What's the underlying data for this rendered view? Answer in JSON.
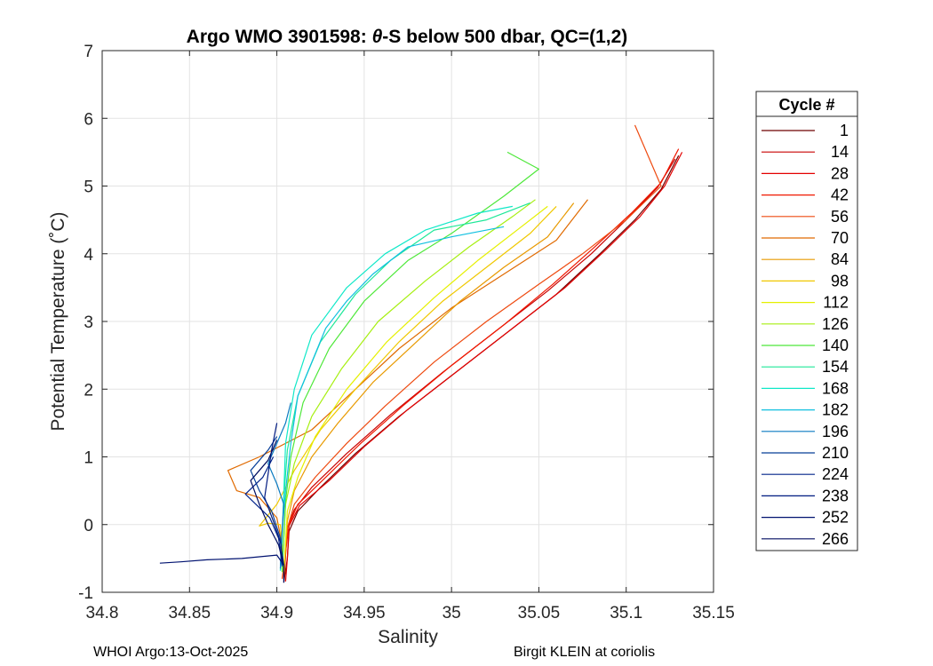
{
  "chart_data": {
    "type": "line",
    "title_prefix": "Argo WMO 3901598: ",
    "title_theta": "θ",
    "title_suffix": "-S below 500 dbar,  QC=(1,2)",
    "xlabel": "Salinity",
    "ylabel": "Potential Temperature (˚C)",
    "xlim": [
      34.8,
      35.15
    ],
    "ylim": [
      -1,
      7
    ],
    "grid": true,
    "xticks": [
      34.8,
      34.85,
      34.9,
      34.95,
      35,
      35.05,
      35.1,
      35.15
    ],
    "xtick_labels": [
      "34.8",
      "34.85",
      "34.9",
      "34.95",
      "35",
      "35.05",
      "35.1",
      "35.15"
    ],
    "yticks": [
      -1,
      0,
      1,
      2,
      3,
      4,
      5,
      6,
      7
    ],
    "ytick_labels": [
      "-1",
      "0",
      "1",
      "2",
      "3",
      "4",
      "5",
      "6",
      "7"
    ],
    "legend": {
      "title": "Cycle #",
      "placement": "outside-right",
      "entries": [
        {
          "label": "1",
          "color": "#6e0000"
        },
        {
          "label": "14",
          "color": "#c80000"
        },
        {
          "label": "28",
          "color": "#e30000"
        },
        {
          "label": "42",
          "color": "#f01800"
        },
        {
          "label": "56",
          "color": "#ee4a10"
        },
        {
          "label": "70",
          "color": "#e06a00"
        },
        {
          "label": "84",
          "color": "#e89a00"
        },
        {
          "label": "98",
          "color": "#f0c800"
        },
        {
          "label": "112",
          "color": "#e5f000"
        },
        {
          "label": "126",
          "color": "#a6ef10"
        },
        {
          "label": "140",
          "color": "#4ee83a"
        },
        {
          "label": "154",
          "color": "#1ee898"
        },
        {
          "label": "168",
          "color": "#10e8c8"
        },
        {
          "label": "182",
          "color": "#10c0e0"
        },
        {
          "label": "196",
          "color": "#0a7ac0"
        },
        {
          "label": "210",
          "color": "#063e98"
        },
        {
          "label": "224",
          "color": "#02238a"
        },
        {
          "label": "238",
          "color": "#001a80"
        },
        {
          "label": "252",
          "color": "#001270"
        },
        {
          "label": "266",
          "color": "#000c60"
        }
      ]
    },
    "series": [
      {
        "name": "1",
        "color": "#6e0000",
        "points": [
          [
            34.904,
            -0.85
          ],
          [
            34.906,
            -0.5
          ],
          [
            34.907,
            -0.1
          ],
          [
            34.912,
            0.2
          ],
          [
            34.925,
            0.55
          ],
          [
            34.945,
            1.05
          ],
          [
            34.97,
            1.6
          ],
          [
            35.0,
            2.2
          ],
          [
            35.03,
            2.8
          ],
          [
            35.06,
            3.4
          ],
          [
            35.085,
            4.0
          ],
          [
            35.105,
            4.5
          ],
          [
            35.12,
            4.95
          ],
          [
            35.13,
            5.45
          ]
        ]
      },
      {
        "name": "14",
        "color": "#c80000",
        "points": [
          [
            34.904,
            -0.82
          ],
          [
            34.905,
            -0.45
          ],
          [
            34.906,
            -0.05
          ],
          [
            34.91,
            0.22
          ],
          [
            34.92,
            0.55
          ],
          [
            34.94,
            1.05
          ],
          [
            34.965,
            1.62
          ],
          [
            34.995,
            2.25
          ],
          [
            35.025,
            2.85
          ],
          [
            35.055,
            3.45
          ],
          [
            35.08,
            4.0
          ],
          [
            35.1,
            4.5
          ],
          [
            35.118,
            4.98
          ],
          [
            35.128,
            5.4
          ]
        ]
      },
      {
        "name": "28",
        "color": "#e30000",
        "points": [
          [
            34.905,
            -0.84
          ],
          [
            34.906,
            -0.5
          ],
          [
            34.907,
            -0.02
          ],
          [
            34.913,
            0.28
          ],
          [
            34.93,
            0.65
          ],
          [
            34.95,
            1.15
          ],
          [
            34.975,
            1.7
          ],
          [
            35.005,
            2.3
          ],
          [
            35.035,
            2.9
          ],
          [
            35.065,
            3.5
          ],
          [
            35.088,
            4.05
          ],
          [
            35.108,
            4.55
          ],
          [
            35.122,
            5.0
          ],
          [
            35.132,
            5.5
          ]
        ]
      },
      {
        "name": "42",
        "color": "#f01800",
        "points": [
          [
            34.904,
            -0.8
          ],
          [
            34.905,
            -0.4
          ],
          [
            34.907,
            0.0
          ],
          [
            34.912,
            0.3
          ],
          [
            34.928,
            0.7
          ],
          [
            34.948,
            1.2
          ],
          [
            34.972,
            1.75
          ],
          [
            35.0,
            2.35
          ],
          [
            35.03,
            2.95
          ],
          [
            35.058,
            3.55
          ],
          [
            35.082,
            4.1
          ],
          [
            35.103,
            4.6
          ],
          [
            35.12,
            5.05
          ],
          [
            35.13,
            5.55
          ]
        ]
      },
      {
        "name": "56",
        "color": "#ee4a10",
        "points": [
          [
            34.903,
            -0.8
          ],
          [
            34.905,
            -0.4
          ],
          [
            34.906,
            -0.05
          ],
          [
            34.91,
            0.3
          ],
          [
            34.922,
            0.7
          ],
          [
            34.94,
            1.2
          ],
          [
            34.962,
            1.75
          ],
          [
            34.99,
            2.4
          ],
          [
            35.02,
            3.0
          ],
          [
            35.05,
            3.55
          ],
          [
            35.075,
            4.0
          ],
          [
            35.1,
            4.5
          ],
          [
            35.12,
            5.0
          ],
          [
            35.105,
            5.9
          ]
        ]
      },
      {
        "name": "70",
        "color": "#e06a00",
        "points": [
          [
            34.904,
            -0.78
          ],
          [
            34.903,
            -0.3
          ],
          [
            34.9,
            0.1
          ],
          [
            34.89,
            0.4
          ],
          [
            34.877,
            0.5
          ],
          [
            34.872,
            0.8
          ],
          [
            34.89,
            1.0
          ],
          [
            34.92,
            1.4
          ],
          [
            34.945,
            2.0
          ],
          [
            34.97,
            2.6
          ],
          [
            35.0,
            3.2
          ],
          [
            35.03,
            3.7
          ],
          [
            35.06,
            4.2
          ],
          [
            35.078,
            4.8
          ]
        ]
      },
      {
        "name": "84",
        "color": "#e89a00",
        "points": [
          [
            34.904,
            -0.75
          ],
          [
            34.905,
            -0.3
          ],
          [
            34.906,
            0.05
          ],
          [
            34.91,
            0.5
          ],
          [
            34.92,
            1.0
          ],
          [
            34.935,
            1.5
          ],
          [
            34.955,
            2.1
          ],
          [
            34.98,
            2.7
          ],
          [
            35.005,
            3.3
          ],
          [
            35.03,
            3.8
          ],
          [
            35.055,
            4.25
          ],
          [
            35.07,
            4.75
          ]
        ]
      },
      {
        "name": "98",
        "color": "#f0c800",
        "points": [
          [
            34.904,
            -0.72
          ],
          [
            34.903,
            -0.3
          ],
          [
            34.902,
            0.0
          ],
          [
            34.895,
            0.02
          ],
          [
            34.89,
            -0.02
          ],
          [
            34.9,
            0.3
          ],
          [
            34.91,
            0.8
          ],
          [
            34.925,
            1.4
          ],
          [
            34.945,
            2.0
          ],
          [
            34.97,
            2.7
          ],
          [
            34.995,
            3.3
          ],
          [
            35.02,
            3.8
          ],
          [
            35.045,
            4.3
          ],
          [
            35.06,
            4.7
          ]
        ]
      },
      {
        "name": "112",
        "color": "#e5f000",
        "points": [
          [
            34.904,
            -0.72
          ],
          [
            34.905,
            -0.25
          ],
          [
            34.906,
            0.2
          ],
          [
            34.912,
            0.7
          ],
          [
            34.922,
            1.3
          ],
          [
            34.94,
            2.0
          ],
          [
            34.963,
            2.7
          ],
          [
            34.99,
            3.35
          ],
          [
            35.015,
            3.9
          ],
          [
            35.04,
            4.4
          ],
          [
            35.055,
            4.7
          ]
        ]
      },
      {
        "name": "126",
        "color": "#a6ef10",
        "points": [
          [
            34.903,
            -0.7
          ],
          [
            34.904,
            -0.2
          ],
          [
            34.905,
            0.3
          ],
          [
            34.91,
            0.9
          ],
          [
            34.92,
            1.6
          ],
          [
            34.937,
            2.3
          ],
          [
            34.958,
            3.0
          ],
          [
            34.985,
            3.6
          ],
          [
            35.01,
            4.1
          ],
          [
            35.035,
            4.55
          ],
          [
            35.048,
            4.8
          ]
        ]
      },
      {
        "name": "140",
        "color": "#4ee83a",
        "points": [
          [
            34.903,
            -0.7
          ],
          [
            34.904,
            -0.2
          ],
          [
            34.905,
            0.35
          ],
          [
            34.908,
            1.0
          ],
          [
            34.915,
            1.8
          ],
          [
            34.93,
            2.6
          ],
          [
            34.95,
            3.3
          ],
          [
            34.975,
            3.9
          ],
          [
            35.0,
            4.3
          ],
          [
            35.03,
            4.85
          ],
          [
            35.05,
            5.25
          ],
          [
            35.032,
            5.5
          ]
        ]
      },
      {
        "name": "154",
        "color": "#1ee898",
        "points": [
          [
            34.902,
            -0.68
          ],
          [
            34.903,
            -0.2
          ],
          [
            34.904,
            0.4
          ],
          [
            34.906,
            1.1
          ],
          [
            34.912,
            1.9
          ],
          [
            34.925,
            2.7
          ],
          [
            34.945,
            3.4
          ],
          [
            34.965,
            3.9
          ],
          [
            34.99,
            4.35
          ],
          [
            35.02,
            4.5
          ],
          [
            35.045,
            4.75
          ]
        ]
      },
      {
        "name": "168",
        "color": "#10e8c8",
        "points": [
          [
            34.902,
            -0.68
          ],
          [
            34.903,
            -0.15
          ],
          [
            34.904,
            0.45
          ],
          [
            34.905,
            1.2
          ],
          [
            34.91,
            2.0
          ],
          [
            34.92,
            2.8
          ],
          [
            34.94,
            3.5
          ],
          [
            34.962,
            4.0
          ],
          [
            34.985,
            4.35
          ],
          [
            35.015,
            4.6
          ],
          [
            35.035,
            4.7
          ]
        ]
      },
      {
        "name": "182",
        "color": "#10c0e0",
        "points": [
          [
            34.902,
            -0.65
          ],
          [
            34.903,
            -0.1
          ],
          [
            34.905,
            0.5
          ],
          [
            34.908,
            1.2
          ],
          [
            34.912,
            1.9
          ],
          [
            34.92,
            2.4
          ],
          [
            34.928,
            2.9
          ],
          [
            34.94,
            3.3
          ],
          [
            34.955,
            3.7
          ],
          [
            34.975,
            4.1
          ],
          [
            35.0,
            4.25
          ],
          [
            35.03,
            4.4
          ]
        ]
      },
      {
        "name": "196",
        "color": "#0a7ac0",
        "points": [
          [
            34.902,
            -0.65
          ],
          [
            34.903,
            -0.1
          ],
          [
            34.904,
            0.3
          ],
          [
            34.9,
            0.6
          ],
          [
            34.895,
            0.9
          ],
          [
            34.9,
            1.2
          ],
          [
            34.905,
            1.5
          ],
          [
            34.908,
            1.8
          ]
        ]
      },
      {
        "name": "210",
        "color": "#063e98",
        "points": [
          [
            34.903,
            -0.62
          ],
          [
            34.902,
            -0.2
          ],
          [
            34.897,
            0.2
          ],
          [
            34.89,
            0.5
          ],
          [
            34.885,
            0.8
          ],
          [
            34.895,
            1.1
          ],
          [
            34.9,
            1.3
          ]
        ]
      },
      {
        "name": "224",
        "color": "#02238a",
        "points": [
          [
            34.903,
            -0.6
          ],
          [
            34.901,
            -0.2
          ],
          [
            34.896,
            0.1
          ],
          [
            34.888,
            0.3
          ],
          [
            34.882,
            0.45
          ],
          [
            34.892,
            0.7
          ],
          [
            34.898,
            1.0
          ]
        ]
      },
      {
        "name": "238",
        "color": "#001a80",
        "points": [
          [
            34.904,
            -0.6
          ],
          [
            34.902,
            -0.25
          ],
          [
            34.898,
            0.05
          ],
          [
            34.893,
            0.4
          ],
          [
            34.897,
            1.1
          ],
          [
            34.9,
            1.5
          ]
        ]
      },
      {
        "name": "252",
        "color": "#001270",
        "points": [
          [
            34.904,
            -0.6
          ],
          [
            34.9,
            -0.45
          ],
          [
            34.88,
            -0.5
          ],
          [
            34.86,
            -0.52
          ],
          [
            34.845,
            -0.55
          ],
          [
            34.833,
            -0.57
          ]
        ]
      },
      {
        "name": "266",
        "color": "#000c60",
        "points": [
          [
            34.904,
            -0.86
          ],
          [
            34.904,
            -0.6
          ],
          [
            34.901,
            -0.3
          ],
          [
            34.895,
            0.0
          ],
          [
            34.89,
            0.3
          ],
          [
            34.885,
            0.65
          ],
          [
            34.895,
            0.95
          ],
          [
            34.9,
            1.25
          ]
        ]
      }
    ]
  },
  "footer": {
    "left": "WHOI Argo:13-Oct-2025",
    "right": "Birgit KLEIN at coriolis"
  }
}
